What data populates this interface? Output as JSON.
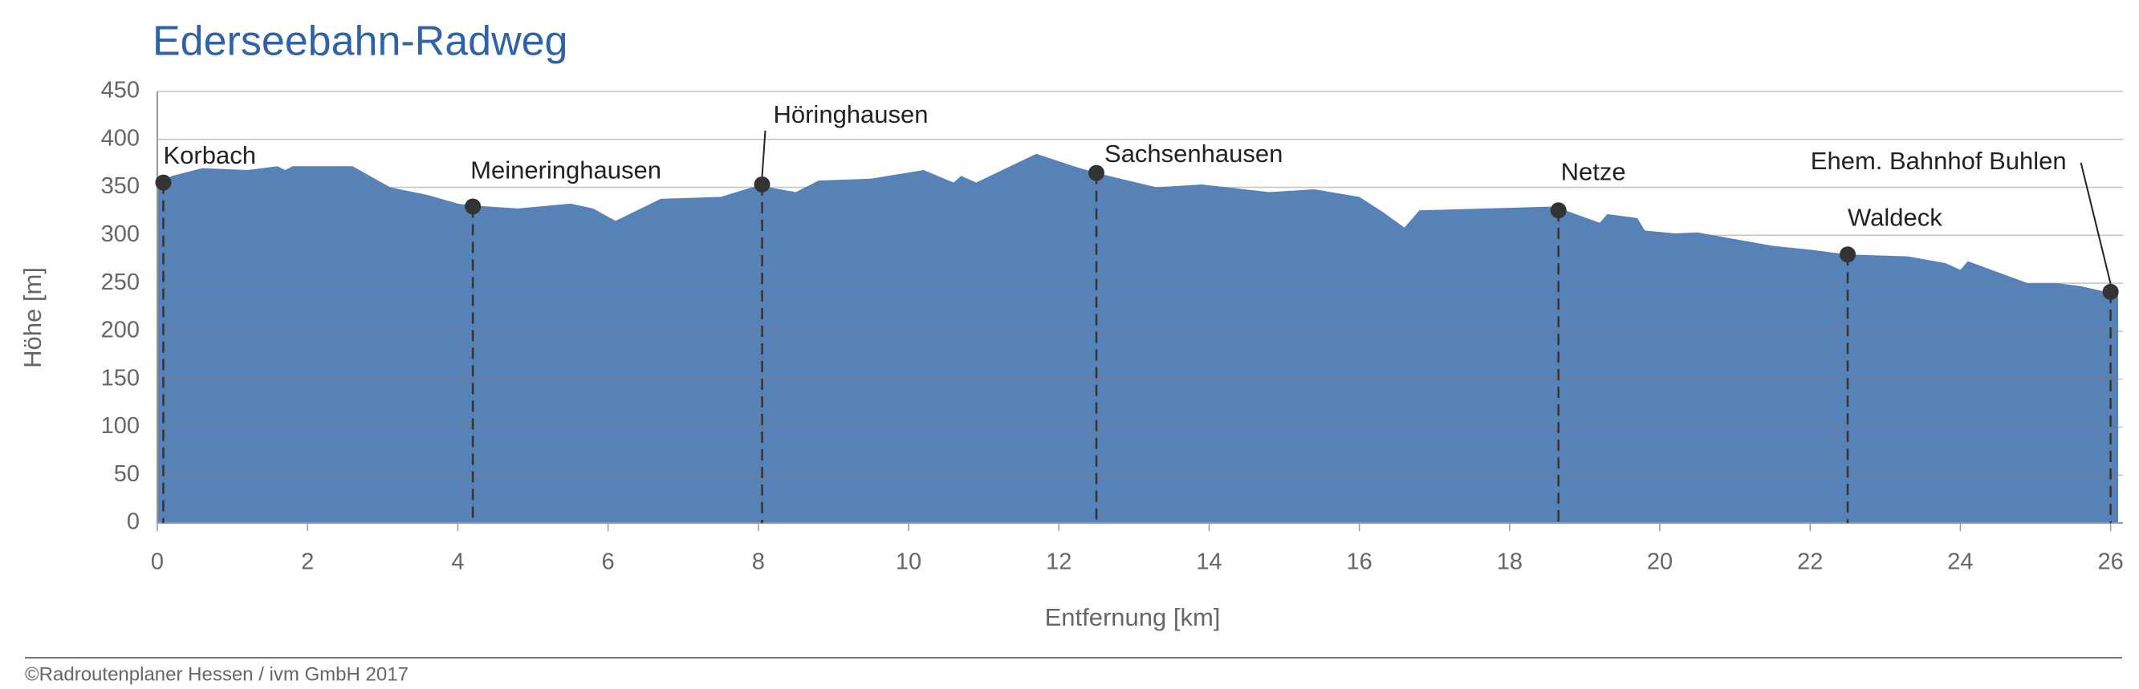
{
  "chart_data": {
    "type": "area",
    "title": "Ederseebahn-Radweg",
    "xlabel": "Entfernung [km]",
    "ylabel": "Höhe [m]",
    "footer": "©Radroutenplaner Hessen / ivm GmbH 2017",
    "color": "#5682b7",
    "marker_color": "#333333",
    "xlim": [
      0,
      26.1
    ],
    "xticks": [
      0,
      2,
      4,
      6,
      8,
      10,
      12,
      14,
      16,
      18,
      20,
      22,
      24,
      26
    ],
    "ylim": [
      0,
      450
    ],
    "yticks": [
      0,
      50,
      100,
      150,
      200,
      250,
      300,
      350,
      400,
      450
    ],
    "grid": true,
    "profile": {
      "km": [
        0,
        0.2,
        0.6,
        1.2,
        1.6,
        1.7,
        1.8,
        2.6,
        3.1,
        3.6,
        4.0,
        4.2,
        4.8,
        5.5,
        5.8,
        6.1,
        6.7,
        7.5,
        8.0,
        8.5,
        8.8,
        9.5,
        10.2,
        10.6,
        10.7,
        10.9,
        11.7,
        12.2,
        12.5,
        13.3,
        13.9,
        14.8,
        15.4,
        16.0,
        16.3,
        16.6,
        16.8,
        18.6,
        19.2,
        19.3,
        19.7,
        19.8,
        20.2,
        20.5,
        21.5,
        22.0,
        22.5,
        23.3,
        23.8,
        24.0,
        24.1,
        24.9,
        25.3,
        25.6,
        26.0,
        26.1
      ],
      "elevation": [
        355,
        362,
        370,
        368,
        372,
        368,
        372,
        372,
        350,
        342,
        333,
        331,
        328,
        333,
        328,
        315,
        338,
        340,
        352,
        345,
        357,
        359,
        368,
        355,
        362,
        355,
        385,
        372,
        365,
        350,
        353,
        345,
        348,
        340,
        325,
        308,
        326,
        330,
        313,
        322,
        318,
        305,
        302,
        303,
        289,
        285,
        280,
        278,
        271,
        264,
        273,
        250,
        250,
        247,
        240,
        237
      ]
    },
    "markers": [
      {
        "name": "Korbach",
        "km": 0.08,
        "elevation": 355
      },
      {
        "name": "Meineringhausen",
        "km": 4.2,
        "elevation": 330
      },
      {
        "name": "Höringhausen",
        "km": 8.05,
        "elevation": 353
      },
      {
        "name": "Sachsenhausen",
        "km": 12.5,
        "elevation": 365
      },
      {
        "name": "Netze",
        "km": 18.65,
        "elevation": 326
      },
      {
        "name": "Waldeck",
        "km": 22.5,
        "elevation": 280
      },
      {
        "name": "Ehem. Bahnhof Buhlen",
        "km": 26.0,
        "elevation": 241
      }
    ]
  }
}
